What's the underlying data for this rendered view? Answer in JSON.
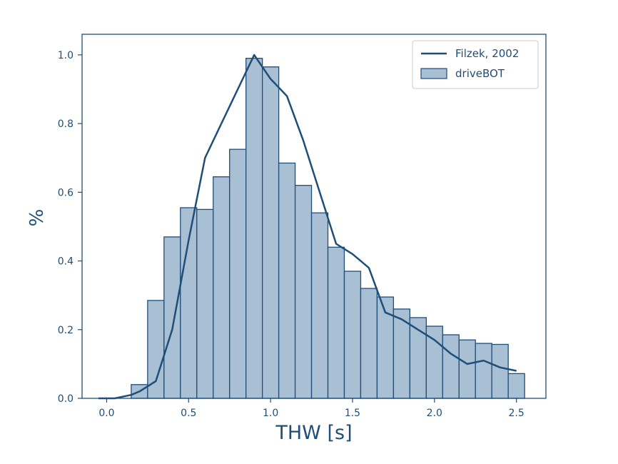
{
  "chart_data": {
    "type": "bar",
    "title": "",
    "xlabel": "THW [s]",
    "ylabel": "%",
    "xlim": [
      -0.15,
      2.68
    ],
    "ylim": [
      0,
      1.06
    ],
    "xticks": [
      "0.0",
      "0.5",
      "1.0",
      "1.5",
      "2.0",
      "2.5"
    ],
    "yticks": [
      "0.0",
      "0.2",
      "0.4",
      "0.6",
      "0.8",
      "1.0"
    ],
    "grid": false,
    "legend_position": "top-right",
    "colors": {
      "axis": "#1f4e79",
      "bar_fill": "#a9bfd4",
      "bar_edge": "#1f4e79",
      "line": "#1f4e79"
    },
    "series": [
      {
        "name": "driveBOT",
        "kind": "histogram",
        "bin_width": 0.1,
        "bin_starts": [
          0.15,
          0.25,
          0.35,
          0.45,
          0.55,
          0.65,
          0.75,
          0.85,
          0.95,
          1.05,
          1.15,
          1.25,
          1.35,
          1.45,
          1.55,
          1.65,
          1.75,
          1.85,
          1.95,
          2.05,
          2.15,
          2.25,
          2.35,
          2.45
        ],
        "values": [
          0.04,
          0.285,
          0.47,
          0.555,
          0.55,
          0.645,
          0.725,
          0.99,
          0.965,
          0.685,
          0.62,
          0.54,
          0.44,
          0.37,
          0.32,
          0.295,
          0.26,
          0.235,
          0.21,
          0.185,
          0.17,
          0.16,
          0.157,
          0.072
        ]
      },
      {
        "name": "Filzek, 2002",
        "kind": "line",
        "x": [
          -0.05,
          0.05,
          0.15,
          0.2,
          0.3,
          0.4,
          0.5,
          0.6,
          0.7,
          0.8,
          0.9,
          1.0,
          1.1,
          1.2,
          1.3,
          1.4,
          1.5,
          1.6,
          1.7,
          1.8,
          1.9,
          2.0,
          2.1,
          2.2,
          2.3,
          2.4,
          2.5
        ],
        "y": [
          0.0,
          0.0,
          0.01,
          0.02,
          0.05,
          0.2,
          0.46,
          0.7,
          0.8,
          0.9,
          1.0,
          0.93,
          0.88,
          0.75,
          0.6,
          0.45,
          0.42,
          0.38,
          0.25,
          0.23,
          0.2,
          0.17,
          0.13,
          0.1,
          0.11,
          0.09,
          0.08
        ]
      }
    ]
  }
}
